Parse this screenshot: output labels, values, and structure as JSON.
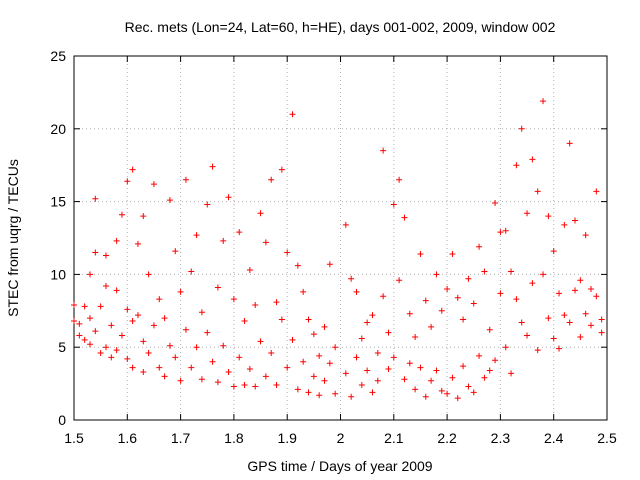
{
  "chart_data": {
    "type": "scatter",
    "title": "Rec. mets (Lon=24, Lat=60, h=HE), days 001-002, 2009, window 002",
    "xlabel": "GPS time / Days of year 2009",
    "ylabel": "STEC from uqrg / TECUs",
    "xlim": [
      1.5,
      2.5
    ],
    "ylim": [
      0,
      25
    ],
    "x_ticks": [
      1.5,
      1.6,
      1.7,
      1.8,
      1.9,
      2.0,
      2.1,
      2.2,
      2.3,
      2.4,
      2.5
    ],
    "x_tick_labels": [
      "1.5",
      "1.6",
      "1.7",
      "1.8",
      "1.9",
      "2",
      "2.1",
      "2.2",
      "2.3",
      "2.4",
      "2.5"
    ],
    "y_ticks": [
      0,
      5,
      10,
      15,
      20,
      25
    ],
    "y_tick_labels": [
      "0",
      "5",
      "10",
      "15",
      "20",
      "25"
    ],
    "grid": true,
    "marker": "+",
    "color": "#ff0000",
    "series": [
      {
        "points": [
          [
            1.5,
            7.9
          ],
          [
            1.5,
            6.8
          ],
          [
            1.51,
            5.8
          ],
          [
            1.51,
            6.6
          ],
          [
            1.52,
            5.5
          ],
          [
            1.52,
            7.8
          ],
          [
            1.53,
            10.0
          ],
          [
            1.53,
            7.0
          ],
          [
            1.53,
            5.2
          ],
          [
            1.54,
            15.2
          ],
          [
            1.54,
            11.5
          ],
          [
            1.54,
            6.1
          ],
          [
            1.55,
            7.8
          ],
          [
            1.55,
            4.6
          ],
          [
            1.56,
            11.3
          ],
          [
            1.56,
            9.2
          ],
          [
            1.56,
            5.0
          ],
          [
            1.57,
            6.5
          ],
          [
            1.57,
            4.3
          ],
          [
            1.58,
            12.3
          ],
          [
            1.58,
            8.9
          ],
          [
            1.58,
            4.8
          ],
          [
            1.59,
            14.1
          ],
          [
            1.59,
            5.8
          ],
          [
            1.6,
            16.4
          ],
          [
            1.6,
            7.6
          ],
          [
            1.6,
            4.2
          ],
          [
            1.61,
            17.2
          ],
          [
            1.61,
            6.8
          ],
          [
            1.61,
            3.6
          ],
          [
            1.62,
            12.1
          ],
          [
            1.62,
            7.2
          ],
          [
            1.63,
            14.0
          ],
          [
            1.63,
            5.4
          ],
          [
            1.63,
            3.3
          ],
          [
            1.64,
            10.0
          ],
          [
            1.64,
            4.6
          ],
          [
            1.65,
            16.2
          ],
          [
            1.65,
            6.5
          ],
          [
            1.66,
            8.3
          ],
          [
            1.66,
            3.6
          ],
          [
            1.67,
            7.0
          ],
          [
            1.67,
            3.0
          ],
          [
            1.68,
            15.1
          ],
          [
            1.68,
            5.1
          ],
          [
            1.69,
            11.6
          ],
          [
            1.69,
            4.3
          ],
          [
            1.7,
            8.8
          ],
          [
            1.7,
            2.7
          ],
          [
            1.71,
            16.5
          ],
          [
            1.71,
            6.2
          ],
          [
            1.72,
            10.2
          ],
          [
            1.72,
            3.6
          ],
          [
            1.73,
            12.7
          ],
          [
            1.73,
            5.0
          ],
          [
            1.74,
            7.4
          ],
          [
            1.74,
            2.8
          ],
          [
            1.75,
            14.8
          ],
          [
            1.75,
            6.0
          ],
          [
            1.76,
            17.4
          ],
          [
            1.76,
            4.0
          ],
          [
            1.77,
            9.1
          ],
          [
            1.77,
            2.6
          ],
          [
            1.78,
            12.3
          ],
          [
            1.78,
            5.1
          ],
          [
            1.79,
            15.3
          ],
          [
            1.79,
            3.3
          ],
          [
            1.8,
            8.3
          ],
          [
            1.8,
            2.3
          ],
          [
            1.81,
            12.9
          ],
          [
            1.81,
            4.3
          ],
          [
            1.82,
            6.8
          ],
          [
            1.82,
            2.4
          ],
          [
            1.83,
            10.3
          ],
          [
            1.83,
            3.5
          ],
          [
            1.84,
            7.9
          ],
          [
            1.84,
            2.3
          ],
          [
            1.85,
            14.2
          ],
          [
            1.85,
            5.4
          ],
          [
            1.86,
            12.2
          ],
          [
            1.86,
            3.0
          ],
          [
            1.87,
            16.5
          ],
          [
            1.87,
            4.6
          ],
          [
            1.88,
            8.1
          ],
          [
            1.88,
            2.4
          ],
          [
            1.89,
            17.2
          ],
          [
            1.89,
            6.9
          ],
          [
            1.9,
            11.5
          ],
          [
            1.9,
            3.6
          ],
          [
            1.91,
            21.0
          ],
          [
            1.91,
            5.5
          ],
          [
            1.92,
            10.6
          ],
          [
            1.92,
            2.1
          ],
          [
            1.93,
            8.8
          ],
          [
            1.93,
            4.0
          ],
          [
            1.94,
            6.9
          ],
          [
            1.94,
            1.9
          ],
          [
            1.95,
            5.9
          ],
          [
            1.95,
            3.0
          ],
          [
            1.96,
            4.4
          ],
          [
            1.96,
            1.7
          ],
          [
            1.97,
            6.4
          ],
          [
            1.97,
            2.7
          ],
          [
            1.98,
            10.7
          ],
          [
            1.98,
            3.9
          ],
          [
            1.99,
            5.0
          ],
          [
            1.99,
            1.8
          ],
          [
            2.01,
            13.4
          ],
          [
            2.01,
            3.2
          ],
          [
            2.02,
            9.7
          ],
          [
            2.02,
            1.6
          ],
          [
            2.03,
            8.8
          ],
          [
            2.03,
            4.3
          ],
          [
            2.04,
            5.6
          ],
          [
            2.04,
            2.4
          ],
          [
            2.05,
            6.7
          ],
          [
            2.05,
            3.4
          ],
          [
            2.06,
            7.2
          ],
          [
            2.06,
            1.9
          ],
          [
            2.07,
            4.6
          ],
          [
            2.07,
            2.7
          ],
          [
            2.08,
            18.5
          ],
          [
            2.08,
            8.5
          ],
          [
            2.09,
            6.0
          ],
          [
            2.09,
            3.5
          ],
          [
            2.1,
            14.8
          ],
          [
            2.1,
            4.3
          ],
          [
            2.11,
            16.5
          ],
          [
            2.11,
            9.6
          ],
          [
            2.12,
            13.9
          ],
          [
            2.12,
            2.8
          ],
          [
            2.13,
            7.3
          ],
          [
            2.13,
            3.9
          ],
          [
            2.14,
            5.7
          ],
          [
            2.14,
            2.1
          ],
          [
            2.15,
            11.4
          ],
          [
            2.15,
            3.6
          ],
          [
            2.16,
            8.2
          ],
          [
            2.16,
            1.6
          ],
          [
            2.17,
            6.4
          ],
          [
            2.17,
            2.7
          ],
          [
            2.18,
            10.0
          ],
          [
            2.18,
            3.4
          ],
          [
            2.19,
            7.5
          ],
          [
            2.19,
            2.0
          ],
          [
            2.2,
            9.0
          ],
          [
            2.2,
            1.8
          ],
          [
            2.21,
            11.4
          ],
          [
            2.21,
            2.9
          ],
          [
            2.22,
            8.4
          ],
          [
            2.22,
            1.5
          ],
          [
            2.23,
            6.9
          ],
          [
            2.23,
            3.7
          ],
          [
            2.24,
            9.7
          ],
          [
            2.24,
            2.3
          ],
          [
            2.25,
            8.0
          ],
          [
            2.25,
            1.9
          ],
          [
            2.26,
            11.9
          ],
          [
            2.26,
            4.4
          ],
          [
            2.27,
            10.2
          ],
          [
            2.27,
            2.9
          ],
          [
            2.28,
            6.2
          ],
          [
            2.28,
            3.4
          ],
          [
            2.29,
            14.9
          ],
          [
            2.29,
            4.1
          ],
          [
            2.3,
            12.9
          ],
          [
            2.3,
            8.7
          ],
          [
            2.31,
            13.0
          ],
          [
            2.31,
            5.0
          ],
          [
            2.32,
            10.2
          ],
          [
            2.32,
            3.2
          ],
          [
            2.33,
            17.5
          ],
          [
            2.33,
            8.3
          ],
          [
            2.34,
            20.0
          ],
          [
            2.34,
            6.7
          ],
          [
            2.35,
            14.2
          ],
          [
            2.35,
            5.8
          ],
          [
            2.36,
            17.9
          ],
          [
            2.36,
            9.4
          ],
          [
            2.37,
            15.7
          ],
          [
            2.37,
            4.8
          ],
          [
            2.38,
            21.9
          ],
          [
            2.38,
            10.0
          ],
          [
            2.39,
            14.0
          ],
          [
            2.39,
            7.0
          ],
          [
            2.4,
            11.6
          ],
          [
            2.4,
            5.6
          ],
          [
            2.41,
            8.7
          ],
          [
            2.41,
            4.9
          ],
          [
            2.42,
            13.4
          ],
          [
            2.42,
            7.2
          ],
          [
            2.43,
            19.0
          ],
          [
            2.43,
            6.7
          ],
          [
            2.44,
            13.7
          ],
          [
            2.44,
            8.9
          ],
          [
            2.45,
            9.6
          ],
          [
            2.45,
            5.7
          ],
          [
            2.46,
            12.7
          ],
          [
            2.46,
            7.3
          ],
          [
            2.47,
            9.0
          ],
          [
            2.47,
            6.5
          ],
          [
            2.48,
            15.7
          ],
          [
            2.48,
            8.5
          ],
          [
            2.49,
            6.9
          ],
          [
            2.49,
            6.0
          ]
        ]
      }
    ]
  }
}
